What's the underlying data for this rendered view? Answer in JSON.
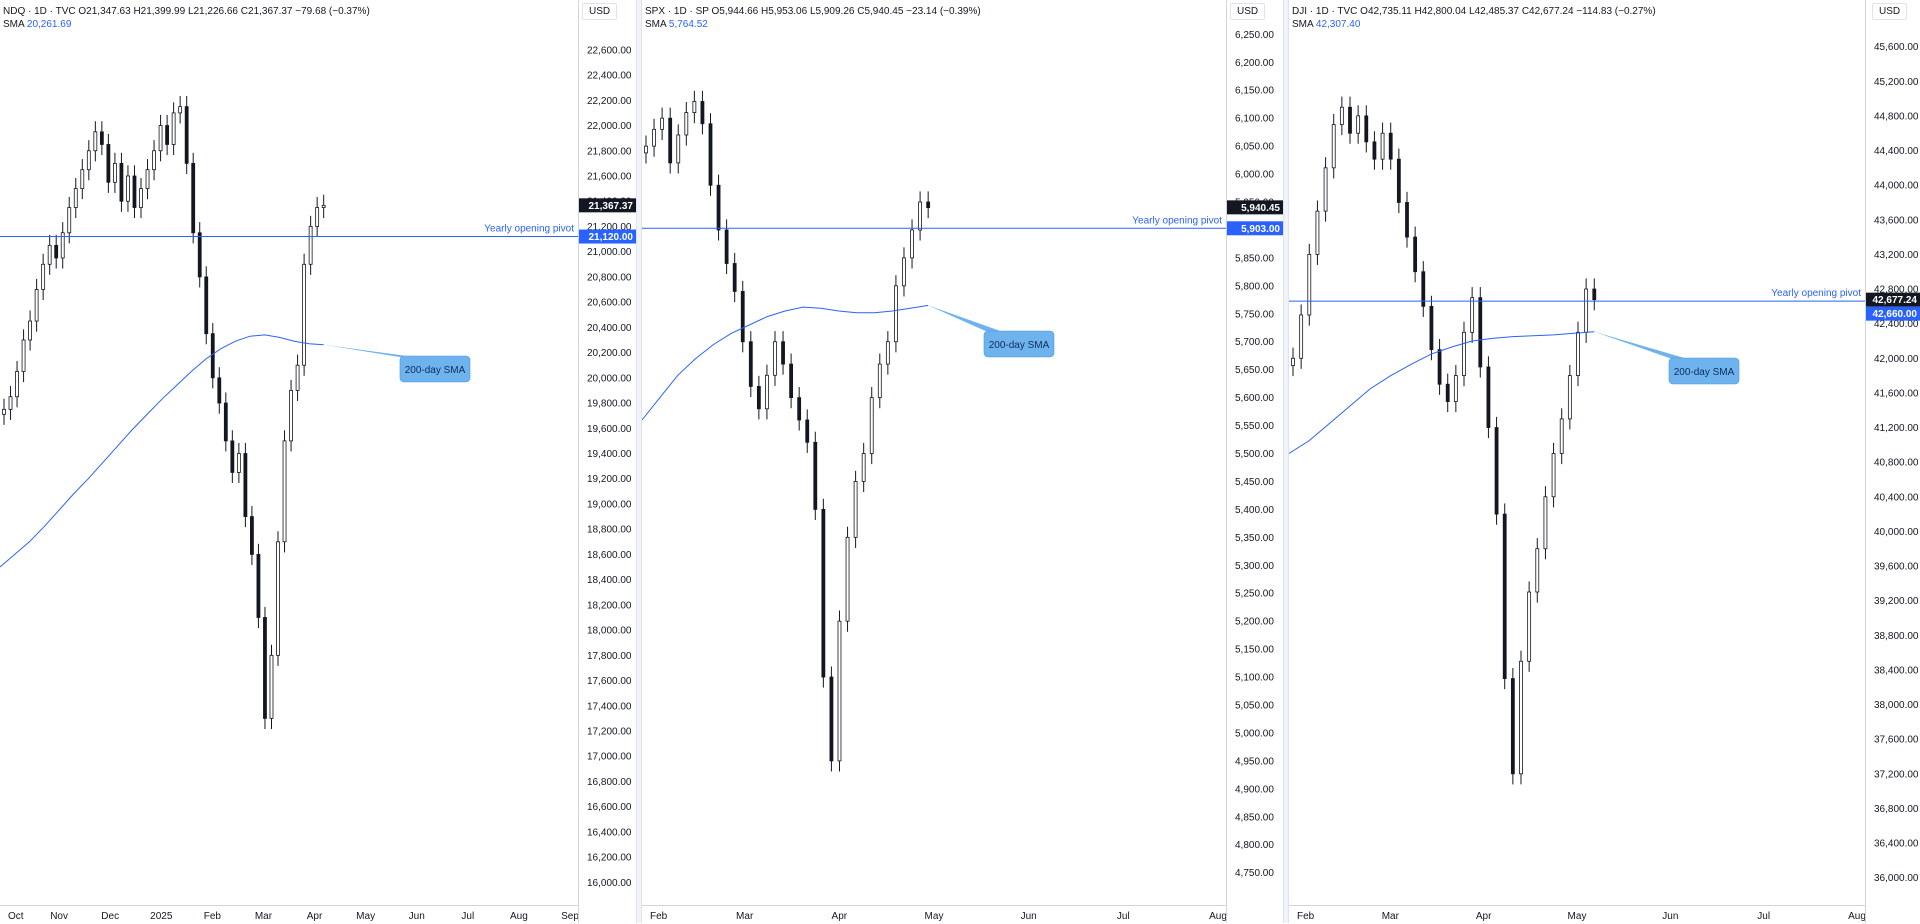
{
  "colors": {
    "line": "#2962ff",
    "sma": "#2962ff",
    "candle": "#131722",
    "callout": "#6fb3ee",
    "callout_text": "#0b2d59",
    "pivot_badge": "#2962ff",
    "price_badge": "#131722"
  },
  "chart_data": [
    {
      "type": "candlestick",
      "header": {
        "symbol": "NDQ · 1D · TVC",
        "open": "O21,347.63",
        "high": "H21,399.99",
        "low": "L21,226.66",
        "close": "C21,367.37",
        "change": "−79.68 (−0.37%)",
        "sma_label": "SMA",
        "sma_value": "20,261.69"
      },
      "currency": "USD",
      "y_ticks": [
        "22,600.00",
        "22,400.00",
        "22,200.00",
        "22,000.00",
        "21,800.00",
        "21,600.00",
        "21,400.00",
        "21,200.00",
        "21,000.00",
        "20,800.00",
        "20,600.00",
        "20,400.00",
        "20,200.00",
        "20,000.00",
        "19,800.00",
        "19,600.00",
        "19,400.00",
        "19,200.00",
        "19,000.00",
        "18,800.00",
        "18,600.00",
        "18,400.00",
        "18,200.00",
        "18,000.00",
        "17,800.00",
        "17,600.00",
        "17,400.00",
        "17,200.00",
        "17,000.00",
        "16,800.00",
        "16,600.00",
        "16,400.00",
        "16,200.00",
        "16,000.00"
      ],
      "ylim": [
        15900,
        22900
      ],
      "x_ticks": [
        "Oct",
        "Nov",
        "Dec",
        "2025",
        "Feb",
        "Mar",
        "Apr",
        "May",
        "Jun",
        "Jul",
        "Aug",
        "Sep"
      ],
      "last_price": "21,367.37",
      "pivot_value": "21,120.00",
      "pivot": 21120,
      "pivot_label": "Yearly opening pivot",
      "sma_callout": "200-day SMA",
      "closes": [
        19750,
        19850,
        20050,
        20300,
        20450,
        20700,
        20900,
        21050,
        20950,
        21150,
        21350,
        21500,
        21650,
        21800,
        21950,
        21850,
        21550,
        21700,
        21400,
        21600,
        21350,
        21500,
        21650,
        21800,
        22000,
        21850,
        22100,
        22150,
        21700,
        21150,
        20800,
        20350,
        20000,
        19800,
        19500,
        19250,
        19400,
        18900,
        18600,
        18100,
        17300,
        17800,
        18700,
        19500,
        19900,
        20100,
        20900,
        21200,
        21350,
        21367
      ],
      "sma": [
        18500,
        18600,
        18700,
        18820,
        18950,
        19080,
        19200,
        19330,
        19460,
        19590,
        19710,
        19830,
        19940,
        20050,
        20150,
        20230,
        20290,
        20330,
        20340,
        20320,
        20290,
        20270,
        20262
      ]
    },
    {
      "type": "candlestick",
      "header": {
        "symbol": "SPX · 1D · SP",
        "open": "O5,944.66",
        "high": "H5,953.06",
        "low": "L5,909.26",
        "close": "C5,940.45",
        "change": "−23.14 (−0.39%)",
        "sma_label": "SMA",
        "sma_value": "5,764.52"
      },
      "currency": "USD",
      "y_ticks": [
        "6,250.00",
        "6,200.00",
        "6,150.00",
        "6,100.00",
        "6,050.00",
        "6,000.00",
        "5,950.00",
        "5,900.00",
        "5,850.00",
        "5,800.00",
        "5,750.00",
        "5,700.00",
        "5,650.00",
        "5,600.00",
        "5,550.00",
        "5,500.00",
        "5,450.00",
        "5,400.00",
        "5,350.00",
        "5,300.00",
        "5,250.00",
        "5,200.00",
        "5,150.00",
        "5,100.00",
        "5,050.00",
        "5,000.00",
        "4,950.00",
        "4,900.00",
        "4,850.00",
        "4,800.00",
        "4,750.00"
      ],
      "ylim": [
        4710,
        6290
      ],
      "x_ticks": [
        "Feb",
        "Mar",
        "Apr",
        "May",
        "Jun",
        "Jul",
        "Aug"
      ],
      "last_price": "5,940.45",
      "pivot_value": "5,903.00",
      "pivot": 5903,
      "pivot_label": "Yearly opening pivot",
      "sma_callout": "200-day SMA",
      "closes": [
        6050,
        6080,
        6100,
        6020,
        6070,
        6110,
        6130,
        6090,
        5980,
        5900,
        5840,
        5790,
        5700,
        5620,
        5580,
        5640,
        5700,
        5660,
        5600,
        5560,
        5520,
        5400,
        5100,
        4950,
        5200,
        5350,
        5450,
        5500,
        5600,
        5660,
        5700,
        5800,
        5850,
        5900,
        5950,
        5940
      ],
      "sma": [
        5560,
        5600,
        5640,
        5670,
        5695,
        5715,
        5730,
        5745,
        5755,
        5762,
        5760,
        5755,
        5752,
        5752,
        5755,
        5760,
        5765
      ]
    },
    {
      "type": "candlestick",
      "header": {
        "symbol": "DJI · 1D · TVC",
        "open": "O42,735.11",
        "high": "H42,800.04",
        "low": "L42,485.37",
        "close": "C42,677.24",
        "change": "−114.83 (−0.27%)",
        "sma_label": "SMA",
        "sma_value": "42,307.40"
      },
      "currency": "USD",
      "y_ticks": [
        "45,600.00",
        "45,200.00",
        "44,800.00",
        "44,400.00",
        "44,000.00",
        "43,600.00",
        "43,200.00",
        "42,800.00",
        "42,400.00",
        "42,000.00",
        "41,600.00",
        "41,200.00",
        "40,800.00",
        "40,400.00",
        "40,000.00",
        "39,600.00",
        "39,200.00",
        "38,800.00",
        "38,400.00",
        "38,000.00",
        "37,600.00",
        "37,200.00",
        "36,800.00",
        "36,400.00",
        "36,000.00"
      ],
      "ylim": [
        35800,
        46000
      ],
      "x_ticks": [
        "Feb",
        "Mar",
        "Apr",
        "May",
        "Jun",
        "Jul",
        "Aug"
      ],
      "last_price": "42,677.24",
      "pivot_value": "42,660.00",
      "pivot": 42660,
      "pivot_label": "Yearly opening pivot",
      "sma_callout": "200-day SMA",
      "closes": [
        42000,
        42500,
        43200,
        43700,
        44200,
        44700,
        44900,
        44600,
        44800,
        44500,
        44300,
        44600,
        44300,
        43800,
        43400,
        43000,
        42600,
        42100,
        41700,
        41500,
        41800,
        42300,
        42700,
        41900,
        41200,
        40200,
        38300,
        37200,
        38500,
        39300,
        39800,
        40400,
        40900,
        41300,
        41800,
        42300,
        42800,
        42677
      ],
      "sma": [
        40900,
        41050,
        41250,
        41450,
        41650,
        41800,
        41930,
        42050,
        42130,
        42200,
        42230,
        42250,
        42260,
        42270,
        42290,
        42307
      ]
    }
  ]
}
